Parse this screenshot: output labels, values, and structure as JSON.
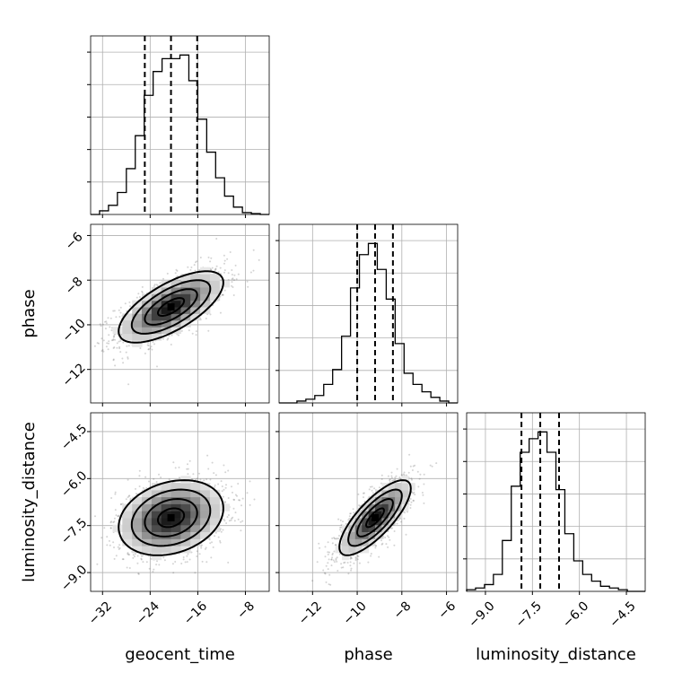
{
  "chart_data": {
    "type": "corner",
    "grid": true,
    "parameters": [
      {
        "name": "geocent_time",
        "label": "geocent_time",
        "range": [
          -34,
          -4
        ],
        "ticks": [
          -32,
          -24,
          -16,
          -8
        ],
        "tick_labels": [
          "−32",
          "−24",
          "−16",
          "−8"
        ],
        "median": -20.5,
        "quantiles": [
          -24.9,
          -20.5,
          -16.1
        ]
      },
      {
        "name": "phase",
        "label": "phase",
        "range": [
          -13.5,
          -5.5
        ],
        "ticks": [
          -12,
          -10,
          -8,
          -6
        ],
        "tick_labels": [
          "−12",
          "−10",
          "−8",
          "−6"
        ],
        "median": -9.2,
        "quantiles": [
          -10.0,
          -9.2,
          -8.4
        ]
      },
      {
        "name": "luminosity_distance",
        "label": "luminosity_distance",
        "range": [
          -9.6,
          -3.9
        ],
        "ticks": [
          -9.0,
          -7.5,
          -6.0,
          -4.5
        ],
        "tick_labels": [
          "−9.0",
          "−7.5",
          "−6.0",
          "−4.5"
        ],
        "median": -7.25,
        "quantiles": [
          -7.85,
          -7.25,
          -6.65
        ]
      }
    ],
    "histograms": [
      {
        "parameter": "geocent_time",
        "bin_edges": [
          -34,
          -32.5,
          -31,
          -29.5,
          -28,
          -26.5,
          -25,
          -23.5,
          -22,
          -20.5,
          -19,
          -17.5,
          -16,
          -14.5,
          -13,
          -11.5,
          -10,
          -8.5,
          -7,
          -5.5,
          -4
        ],
        "counts": [
          0,
          2,
          5,
          12,
          25,
          43,
          65,
          78,
          85,
          85,
          87,
          73,
          52,
          34,
          20,
          10,
          4,
          1,
          0.5,
          0
        ]
      },
      {
        "parameter": "phase",
        "bin_edges": [
          -13.5,
          -13.1,
          -12.7,
          -12.3,
          -11.9,
          -11.5,
          -11.1,
          -10.7,
          -10.3,
          -9.9,
          -9.5,
          -9.1,
          -8.7,
          -8.3,
          -7.9,
          -7.5,
          -7.1,
          -6.7,
          -6.3,
          -5.9,
          -5.5
        ],
        "counts": [
          0,
          0,
          1,
          2,
          4,
          10,
          18,
          36,
          62,
          80,
          86,
          72,
          56,
          32,
          16,
          10,
          6,
          3,
          1,
          0
        ]
      },
      {
        "parameter": "luminosity_distance",
        "bin_edges": [
          -9.6,
          -9.315,
          -9.03,
          -8.745,
          -8.46,
          -8.175,
          -7.89,
          -7.605,
          -7.32,
          -7.035,
          -6.75,
          -6.465,
          -6.18,
          -5.895,
          -5.61,
          -5.325,
          -5.04,
          -4.755,
          -4.47,
          -4.185,
          -3.9
        ],
        "counts": [
          1,
          2,
          4,
          10,
          30,
          62,
          82,
          90,
          94,
          82,
          60,
          34,
          18,
          10,
          6,
          3,
          2,
          1,
          0,
          0
        ]
      }
    ],
    "pairs": [
      {
        "x": "geocent_time",
        "y": "phase",
        "mean": [
          -20.5,
          -9.2
        ],
        "sd": [
          4.4,
          0.8
        ],
        "corr": 0.68
      },
      {
        "x": "geocent_time",
        "y": "luminosity_distance",
        "mean": [
          -20.5,
          -7.25
        ],
        "sd": [
          4.4,
          0.6
        ],
        "corr": 0.25
      },
      {
        "x": "phase",
        "y": "luminosity_distance",
        "mean": [
          -9.2,
          -7.25
        ],
        "sd": [
          0.8,
          0.6
        ],
        "corr": 0.78
      }
    ]
  }
}
